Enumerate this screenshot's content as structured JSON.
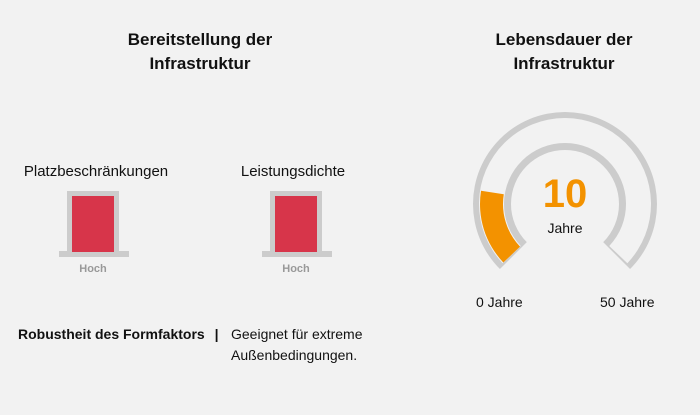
{
  "provisioning": {
    "title": "Bereitstellung der\nInfrastruktur",
    "metrics": [
      {
        "label": "Platzbeschränkungen",
        "level": "Hoch"
      },
      {
        "label": "Leistungsdichte",
        "level": "Hoch"
      }
    ],
    "robustness": {
      "label": "Robustheit des Formfaktors",
      "separator": "|",
      "value": "Geeignet für extreme\nAußenbedingungen."
    }
  },
  "lifetime": {
    "title": "Lebensdauer der\nInfrastruktur",
    "gauge": {
      "value": 10,
      "max": 50,
      "value_label": "10",
      "unit_label": "Jahre",
      "min_label": "0 Jahre",
      "max_label": "50 Jahre"
    }
  },
  "colors": {
    "background": "#f2f2f2",
    "level_fill": "#d7354a",
    "level_frame": "#cccccc",
    "gauge_track": "#cccccc",
    "gauge_fill": "#f39200"
  }
}
